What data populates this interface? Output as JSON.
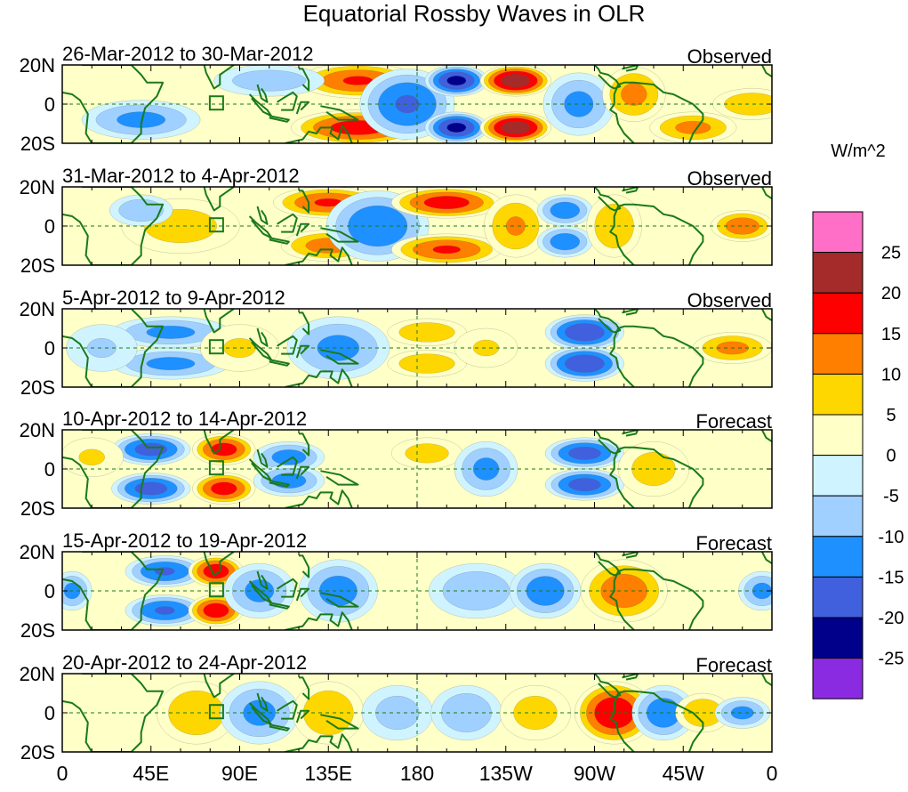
{
  "chart_data": {
    "type": "heatmap",
    "title": "Equatorial Rossby Waves in OLR",
    "units": "W/m^2",
    "x_ticks": [
      "0",
      "45E",
      "90E",
      "135E",
      "180",
      "135W",
      "90W",
      "45W",
      "0"
    ],
    "x_tick_values": [
      0,
      45,
      90,
      135,
      180,
      225,
      270,
      315,
      360
    ],
    "y_ticks": [
      "20N",
      "0",
      "20S"
    ],
    "y_tick_values": [
      20,
      0,
      -20
    ],
    "xlim": [
      0,
      360
    ],
    "ylim": [
      -20,
      20
    ],
    "colorbar": {
      "labels": [
        "25",
        "20",
        "15",
        "10",
        "5",
        "0",
        "-5",
        "-10",
        "-15",
        "-20",
        "-25"
      ],
      "levels": [
        25,
        20,
        15,
        10,
        5,
        0,
        -5,
        -10,
        -15,
        -20,
        -25
      ],
      "colors": [
        "#ff6ec7",
        "#a52a2a",
        "#ff0000",
        "#ff7f00",
        "#ffd700",
        "#ffffc8",
        "#d0f4ff",
        "#a0d0ff",
        "#1e90ff",
        "#4060dd",
        "#00008b",
        "#8a2be2"
      ]
    },
    "panels": [
      {
        "date_range": "26-Mar-2012 to 30-Mar-2012",
        "status": "Observed",
        "features": [
          {
            "lon": 150,
            "lat": 12,
            "value": 16,
            "w": 30,
            "h": 9
          },
          {
            "lon": 150,
            "lat": -12,
            "value": 18,
            "w": 34,
            "h": 9
          },
          {
            "lon": 175,
            "lat": 0,
            "value": -16,
            "w": 24,
            "h": 18
          },
          {
            "lon": 200,
            "lat": 12,
            "value": -22,
            "w": 16,
            "h": 8
          },
          {
            "lon": 200,
            "lat": -12,
            "value": -22,
            "w": 16,
            "h": 8
          },
          {
            "lon": 230,
            "lat": 12,
            "value": 24,
            "w": 18,
            "h": 8
          },
          {
            "lon": 230,
            "lat": -12,
            "value": 24,
            "w": 18,
            "h": 8
          },
          {
            "lon": 262,
            "lat": 0,
            "value": -12,
            "w": 18,
            "h": 16
          },
          {
            "lon": 290,
            "lat": 5,
            "value": 12,
            "w": 16,
            "h": 14
          },
          {
            "lon": 320,
            "lat": -12,
            "value": 12,
            "w": 22,
            "h": 8
          },
          {
            "lon": 40,
            "lat": -8,
            "value": -12,
            "w": 30,
            "h": 10
          },
          {
            "lon": 105,
            "lat": 12,
            "value": -9,
            "w": 28,
            "h": 8
          },
          {
            "lon": 350,
            "lat": 0,
            "value": 10,
            "w": 20,
            "h": 8
          }
        ]
      },
      {
        "date_range": "31-Mar-2012 to 4-Apr-2012",
        "status": "Observed",
        "features": [
          {
            "lon": 135,
            "lat": 12,
            "value": 16,
            "w": 28,
            "h": 8
          },
          {
            "lon": 135,
            "lat": -10,
            "value": 13,
            "w": 24,
            "h": 8
          },
          {
            "lon": 160,
            "lat": 0,
            "value": -15,
            "w": 26,
            "h": 18
          },
          {
            "lon": 195,
            "lat": 12,
            "value": 18,
            "w": 28,
            "h": 8
          },
          {
            "lon": 195,
            "lat": -12,
            "value": 16,
            "w": 28,
            "h": 8
          },
          {
            "lon": 230,
            "lat": 0,
            "value": 11,
            "w": 16,
            "h": 16
          },
          {
            "lon": 255,
            "lat": 8,
            "value": -14,
            "w": 14,
            "h": 8
          },
          {
            "lon": 255,
            "lat": -8,
            "value": -14,
            "w": 14,
            "h": 8
          },
          {
            "lon": 280,
            "lat": 0,
            "value": 10,
            "w": 14,
            "h": 16
          },
          {
            "lon": 60,
            "lat": 0,
            "value": 8,
            "w": 30,
            "h": 14
          },
          {
            "lon": 40,
            "lat": 8,
            "value": -10,
            "w": 16,
            "h": 8
          },
          {
            "lon": 345,
            "lat": 0,
            "value": 14,
            "w": 16,
            "h": 8
          }
        ]
      },
      {
        "date_range": "5-Apr-2012 to 9-Apr-2012",
        "status": "Observed",
        "features": [
          {
            "lon": 55,
            "lat": 8,
            "value": -12,
            "w": 30,
            "h": 8
          },
          {
            "lon": 55,
            "lat": -8,
            "value": -12,
            "w": 30,
            "h": 8
          },
          {
            "lon": 90,
            "lat": 0,
            "value": 6,
            "w": 20,
            "h": 12
          },
          {
            "lon": 140,
            "lat": 0,
            "value": -12,
            "w": 26,
            "h": 16
          },
          {
            "lon": 185,
            "lat": 8,
            "value": 10,
            "w": 20,
            "h": 7
          },
          {
            "lon": 185,
            "lat": -8,
            "value": 10,
            "w": 20,
            "h": 7
          },
          {
            "lon": 215,
            "lat": 0,
            "value": 6,
            "w": 16,
            "h": 10
          },
          {
            "lon": 265,
            "lat": 8,
            "value": -20,
            "w": 20,
            "h": 9
          },
          {
            "lon": 265,
            "lat": -8,
            "value": -20,
            "w": 20,
            "h": 9
          },
          {
            "lon": 340,
            "lat": 0,
            "value": 12,
            "w": 20,
            "h": 8
          },
          {
            "lon": 20,
            "lat": 0,
            "value": -6,
            "w": 18,
            "h": 12
          }
        ]
      },
      {
        "date_range": "10-Apr-2012 to 14-Apr-2012",
        "status": "Forecast",
        "features": [
          {
            "lon": 45,
            "lat": 10,
            "value": -18,
            "w": 20,
            "h": 8
          },
          {
            "lon": 45,
            "lat": -10,
            "value": -18,
            "w": 20,
            "h": 8
          },
          {
            "lon": 82,
            "lat": 10,
            "value": 18,
            "w": 16,
            "h": 8
          },
          {
            "lon": 82,
            "lat": -10,
            "value": 18,
            "w": 16,
            "h": 8
          },
          {
            "lon": 115,
            "lat": 6,
            "value": -13,
            "w": 18,
            "h": 8
          },
          {
            "lon": 115,
            "lat": -6,
            "value": -13,
            "w": 18,
            "h": 8
          },
          {
            "lon": 185,
            "lat": 8,
            "value": 8,
            "w": 18,
            "h": 8
          },
          {
            "lon": 215,
            "lat": 0,
            "value": -12,
            "w": 16,
            "h": 14
          },
          {
            "lon": 265,
            "lat": 8,
            "value": -18,
            "w": 20,
            "h": 8
          },
          {
            "lon": 265,
            "lat": -8,
            "value": -18,
            "w": 20,
            "h": 8
          },
          {
            "lon": 300,
            "lat": 0,
            "value": 8,
            "w": 18,
            "h": 14
          },
          {
            "lon": 15,
            "lat": 6,
            "value": 6,
            "w": 16,
            "h": 10
          }
        ]
      },
      {
        "date_range": "15-Apr-2012 to 19-Apr-2012",
        "status": "Forecast",
        "features": [
          {
            "lon": 52,
            "lat": 10,
            "value": -16,
            "w": 20,
            "h": 8
          },
          {
            "lon": 52,
            "lat": -10,
            "value": -16,
            "w": 20,
            "h": 8
          },
          {
            "lon": 78,
            "lat": 10,
            "value": 19,
            "w": 14,
            "h": 8
          },
          {
            "lon": 78,
            "lat": -10,
            "value": 19,
            "w": 14,
            "h": 8
          },
          {
            "lon": 100,
            "lat": 0,
            "value": -12,
            "w": 18,
            "h": 14
          },
          {
            "lon": 140,
            "lat": 0,
            "value": -13,
            "w": 20,
            "h": 16
          },
          {
            "lon": 210,
            "lat": 0,
            "value": -10,
            "w": 24,
            "h": 14
          },
          {
            "lon": 245,
            "lat": 0,
            "value": -14,
            "w": 18,
            "h": 14
          },
          {
            "lon": 285,
            "lat": 0,
            "value": 14,
            "w": 22,
            "h": 16
          },
          {
            "lon": 355,
            "lat": 0,
            "value": -12,
            "w": 12,
            "h": 10
          },
          {
            "lon": 5,
            "lat": 0,
            "value": -12,
            "w": 10,
            "h": 10
          }
        ]
      },
      {
        "date_range": "20-Apr-2012 to 24-Apr-2012",
        "status": "Forecast",
        "features": [
          {
            "lon": 68,
            "lat": 0,
            "value": 10,
            "w": 20,
            "h": 16
          },
          {
            "lon": 100,
            "lat": 0,
            "value": -12,
            "w": 20,
            "h": 16
          },
          {
            "lon": 135,
            "lat": 0,
            "value": 10,
            "w": 18,
            "h": 16
          },
          {
            "lon": 170,
            "lat": 0,
            "value": -8,
            "w": 18,
            "h": 14
          },
          {
            "lon": 205,
            "lat": 0,
            "value": -10,
            "w": 18,
            "h": 14
          },
          {
            "lon": 240,
            "lat": 0,
            "value": 8,
            "w": 18,
            "h": 14
          },
          {
            "lon": 280,
            "lat": 0,
            "value": 20,
            "w": 20,
            "h": 16
          },
          {
            "lon": 305,
            "lat": 0,
            "value": -14,
            "w": 16,
            "h": 14
          },
          {
            "lon": 325,
            "lat": 0,
            "value": 10,
            "w": 14,
            "h": 10
          },
          {
            "lon": 345,
            "lat": 0,
            "value": -12,
            "w": 14,
            "h": 8
          }
        ]
      }
    ]
  }
}
